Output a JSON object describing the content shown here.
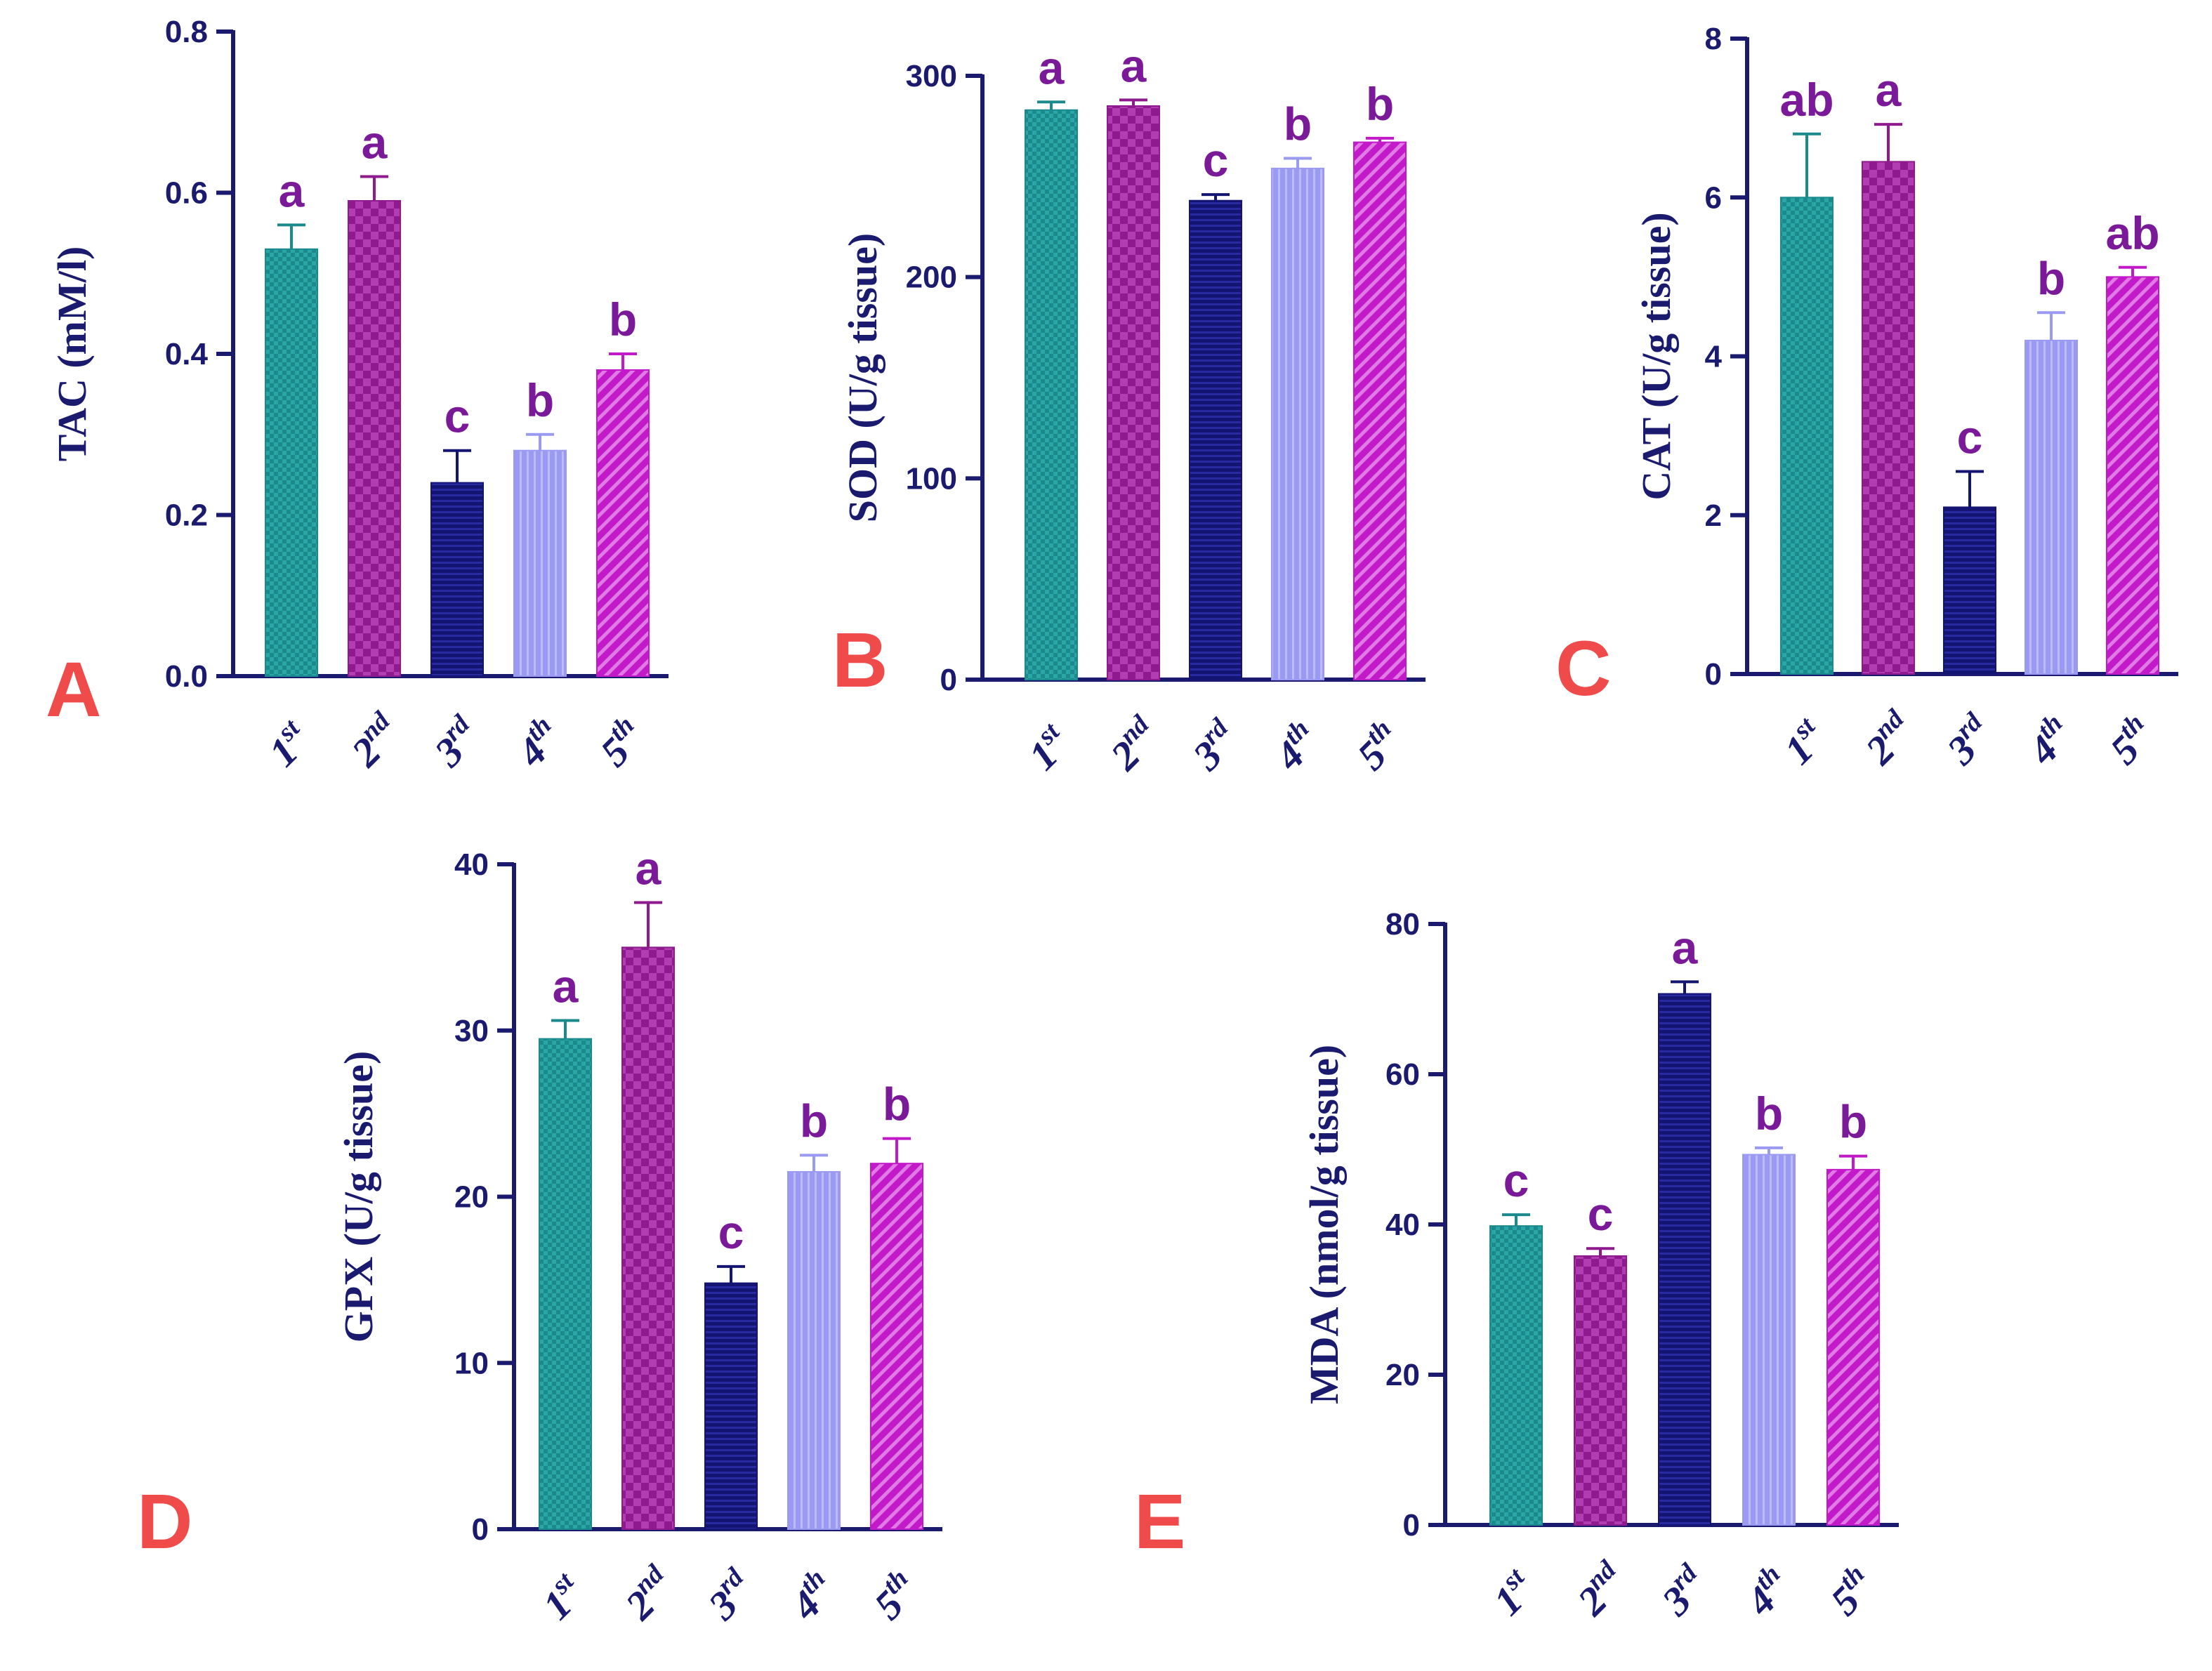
{
  "colors": {
    "axis": "#1a1a6e",
    "significance": "#7b1a98",
    "panel_label": "#f04b4b",
    "series": [
      "#1a8a8c",
      "#8e1a8e",
      "#141473",
      "#9a9af2",
      "#c21ac8"
    ]
  },
  "chart_data": [
    {
      "type": "bar",
      "panel": "A",
      "ylabel": "TAC (mM/l)",
      "categories": [
        {
          "base": "1",
          "sup": "st"
        },
        {
          "base": "2",
          "sup": "nd"
        },
        {
          "base": "3",
          "sup": "rd"
        },
        {
          "base": "4",
          "sup": "th"
        },
        {
          "base": "5",
          "sup": "th"
        }
      ],
      "values": [
        0.53,
        0.59,
        0.24,
        0.28,
        0.38
      ],
      "errors": [
        0.03,
        0.03,
        0.04,
        0.02,
        0.02
      ],
      "significance": [
        "a",
        "a",
        "c",
        "b",
        "b"
      ],
      "ylim": [
        0,
        0.8
      ],
      "yticks": [
        0,
        0.2,
        0.4,
        0.6,
        0.8
      ],
      "ytick_labels": [
        "0.0",
        "0.2",
        "0.4",
        "0.6",
        "0.8"
      ]
    },
    {
      "type": "bar",
      "panel": "B",
      "ylabel": "SOD (U/g tissue)",
      "categories": [
        {
          "base": "1",
          "sup": "st"
        },
        {
          "base": "2",
          "sup": "nd"
        },
        {
          "base": "3",
          "sup": "rd"
        },
        {
          "base": "4",
          "sup": "th"
        },
        {
          "base": "5",
          "sup": "th"
        }
      ],
      "values": [
        283,
        285,
        238,
        254,
        267
      ],
      "errors": [
        4,
        3,
        3,
        5,
        2
      ],
      "significance": [
        "a",
        "a",
        "c",
        "b",
        "b"
      ],
      "ylim": [
        0,
        300
      ],
      "yticks": [
        0,
        100,
        200,
        300
      ],
      "ytick_labels": [
        "0",
        "100",
        "200",
        "300"
      ]
    },
    {
      "type": "bar",
      "panel": "C",
      "ylabel": "CAT (U/g tissue)",
      "categories": [
        {
          "base": "1",
          "sup": "st"
        },
        {
          "base": "2",
          "sup": "nd"
        },
        {
          "base": "3",
          "sup": "rd"
        },
        {
          "base": "4",
          "sup": "th"
        },
        {
          "base": "5",
          "sup": "th"
        }
      ],
      "values": [
        6.0,
        6.45,
        2.1,
        4.2,
        5.0
      ],
      "errors": [
        0.8,
        0.47,
        0.45,
        0.35,
        0.12
      ],
      "significance": [
        "ab",
        "a",
        "c",
        "b",
        "ab"
      ],
      "ylim": [
        0,
        8
      ],
      "yticks": [
        0,
        2,
        4,
        6,
        8
      ],
      "ytick_labels": [
        "0",
        "2",
        "4",
        "6",
        "8"
      ]
    },
    {
      "type": "bar",
      "panel": "D",
      "ylabel": "GPX (U/g tissue)",
      "categories": [
        {
          "base": "1",
          "sup": "st"
        },
        {
          "base": "2",
          "sup": "nd"
        },
        {
          "base": "3",
          "sup": "rd"
        },
        {
          "base": "4",
          "sup": "th"
        },
        {
          "base": "5",
          "sup": "th"
        }
      ],
      "values": [
        29.5,
        35.0,
        14.8,
        21.5,
        22.0
      ],
      "errors": [
        1.1,
        2.7,
        1.0,
        1.0,
        1.5
      ],
      "significance": [
        "a",
        "a",
        "c",
        "b",
        "b"
      ],
      "ylim": [
        0,
        40
      ],
      "yticks": [
        0,
        10,
        20,
        30,
        40
      ],
      "ytick_labels": [
        "0",
        "10",
        "20",
        "30",
        "40"
      ]
    },
    {
      "type": "bar",
      "panel": "E",
      "ylabel": "MDA (nmol/g tissue)",
      "categories": [
        {
          "base": "1",
          "sup": "st"
        },
        {
          "base": "2",
          "sup": "nd"
        },
        {
          "base": "3",
          "sup": "rd"
        },
        {
          "base": "4",
          "sup": "th"
        },
        {
          "base": "5",
          "sup": "th"
        }
      ],
      "values": [
        39.8,
        35.8,
        70.7,
        49.3,
        47.3
      ],
      "errors": [
        1.5,
        1.0,
        1.6,
        0.9,
        1.8
      ],
      "significance": [
        "c",
        "c",
        "a",
        "b",
        "b"
      ],
      "ylim": [
        0,
        80
      ],
      "yticks": [
        0,
        20,
        40,
        60,
        80
      ],
      "ytick_labels": [
        "0",
        "20",
        "40",
        "60",
        "80"
      ]
    }
  ]
}
